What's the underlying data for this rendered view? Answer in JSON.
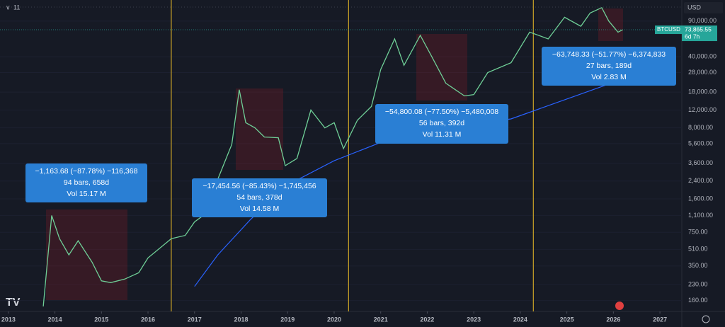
{
  "toolbar": {
    "interval": "11",
    "currency": "USD"
  },
  "chart_data": {
    "type": "line",
    "yscale": "log",
    "symbol": "BTCUSD",
    "last_price": {
      "value": 73865.55,
      "label": "73,865.55"
    },
    "countdown": "6d 7h",
    "xlim": [
      2012.82,
      2027.47
    ],
    "xticks": [
      2013,
      2014,
      2015,
      2016,
      2017,
      2018,
      2019,
      2020,
      2021,
      2022,
      2023,
      2024,
      2025,
      2026,
      2027
    ],
    "ylim": [
      125,
      145000
    ],
    "yticks": [
      {
        "value": 90000,
        "label": "90,000.00"
      },
      {
        "value": 40000,
        "label": "40,000.00"
      },
      {
        "value": 28000,
        "label": "28,000.00"
      },
      {
        "value": 18000,
        "label": "18,000.00"
      },
      {
        "value": 12000,
        "label": "12,000.00"
      },
      {
        "value": 8000,
        "label": "8,000.00"
      },
      {
        "value": 5600,
        "label": "5,600.00"
      },
      {
        "value": 3600,
        "label": "3,600.00"
      },
      {
        "value": 2400,
        "label": "2,400.00"
      },
      {
        "value": 1600,
        "label": "1,600.00"
      },
      {
        "value": 1100,
        "label": "1,100.00"
      },
      {
        "value": 750,
        "label": "750.00"
      },
      {
        "value": 510,
        "label": "510.00"
      },
      {
        "value": 350,
        "label": "350.00"
      },
      {
        "value": 230,
        "label": "230.00"
      },
      {
        "value": 160,
        "label": "160.00"
      }
    ],
    "halvings": [
      2016.5,
      2020.31,
      2024.28
    ],
    "series": [
      {
        "color": "#6fcf97",
        "x": [
          2013.75,
          2013.93,
          2014.1,
          2014.3,
          2014.5,
          2014.8,
          2015.0,
          2015.2,
          2015.5,
          2015.8,
          2016.0,
          2016.5,
          2016.8,
          2017.0,
          2017.3,
          2017.5,
          2017.8,
          2017.96,
          2018.1,
          2018.3,
          2018.5,
          2018.8,
          2018.95,
          2019.2,
          2019.5,
          2019.8,
          2020.0,
          2020.2,
          2020.5,
          2020.8,
          2021.0,
          2021.3,
          2021.5,
          2021.85,
          2022.1,
          2022.4,
          2022.8,
          2023.0,
          2023.3,
          2023.8,
          2024.2,
          2024.6,
          2024.95,
          2025.3,
          2025.5,
          2025.75,
          2025.9,
          2026.1,
          2026.2
        ],
        "values": [
          140,
          1100,
          650,
          450,
          620,
          380,
          250,
          240,
          260,
          300,
          420,
          650,
          700,
          950,
          1200,
          2500,
          5500,
          19000,
          9000,
          8000,
          6500,
          6400,
          3400,
          4000,
          12000,
          8000,
          9000,
          5000,
          9500,
          13000,
          30000,
          60000,
          33000,
          65000,
          40000,
          22000,
          16500,
          17000,
          28000,
          35000,
          70000,
          60000,
          98000,
          80000,
          108000,
          122000,
          90000,
          70000,
          73865
        ]
      },
      {
        "color": "#2962ff",
        "x": [
          2017.0,
          2017.5,
          2018.2,
          2019.0,
          2020.0,
          2021.06,
          2022.0,
          2023.8,
          2025.95
        ],
        "values": [
          220,
          450,
          1000,
          2200,
          3800,
          5900,
          7500,
          9800,
          22000
        ]
      }
    ],
    "measurements": [
      {
        "lines": [
          "−1,163.68 (−87.78%) −116,368",
          "94 bars, 658d",
          "Vol 15.17 M"
        ]
      },
      {
        "lines": [
          "−17,454.56 (−85.43%) −1,745,456",
          "54 bars, 378d",
          "Vol 14.58 M"
        ]
      },
      {
        "lines": [
          "−54,800.08 (−77.50%) −5,480,008",
          "56 bars, 392d",
          "Vol 11.31 M"
        ]
      },
      {
        "lines": [
          "−63,748.33 (−51.77%) −6,374,833",
          "27 bars, 189d",
          "Vol 2.83 M"
        ]
      }
    ]
  }
}
